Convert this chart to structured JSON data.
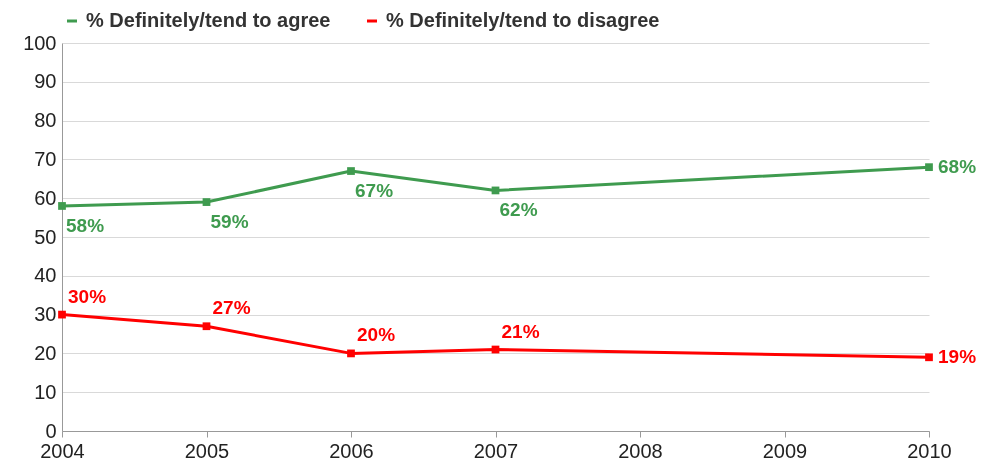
{
  "chart_data": {
    "type": "line",
    "x": [
      2004,
      2005,
      2006,
      2007,
      2010
    ],
    "xlim": [
      2004,
      2010
    ],
    "xticks": [
      2004,
      2005,
      2006,
      2007,
      2008,
      2009,
      2010
    ],
    "ylim": [
      0,
      100
    ],
    "yticks": [
      0,
      10,
      20,
      30,
      40,
      50,
      60,
      70,
      80,
      90,
      100
    ],
    "grid": "y",
    "legend": "top",
    "marker": "square",
    "line_style": "solid",
    "series": [
      {
        "name": "% Definitely/tend to agree",
        "color": "#3f9b4f",
        "values": [
          58,
          59,
          67,
          62,
          68
        ],
        "value_labels": [
          "58%",
          "59%",
          "67%",
          "62%",
          "68%"
        ]
      },
      {
        "name": "% Definitely/tend to disagree",
        "color": "#ff0000",
        "values": [
          30,
          27,
          20,
          21,
          19
        ],
        "value_labels": [
          "30%",
          "27%",
          "20%",
          "21%",
          "19%"
        ]
      }
    ]
  }
}
